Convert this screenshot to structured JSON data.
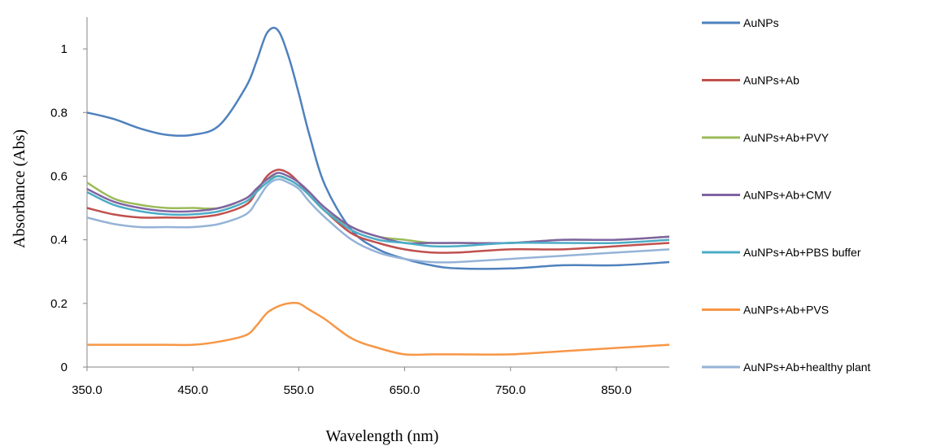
{
  "chart_data": {
    "type": "line",
    "title": "",
    "xlabel": "Wavelength (nm)",
    "ylabel": "Absorbance (Abs)",
    "xlim": [
      350,
      900
    ],
    "ylim": [
      0,
      1.1
    ],
    "x_ticks": [
      "350.0",
      "450.0",
      "550.0",
      "650.0",
      "750.0",
      "850.0"
    ],
    "x_tick_values": [
      350,
      450,
      550,
      650,
      750,
      850
    ],
    "y_ticks": [
      "0",
      "0.2",
      "0.4",
      "0.6",
      "0.8",
      "1"
    ],
    "y_tick_values": [
      0,
      0.2,
      0.4,
      0.6,
      0.8,
      1.0
    ],
    "grid": false,
    "legend_position": "right",
    "x": [
      350,
      375,
      400,
      425,
      450,
      475,
      500,
      510,
      520,
      530,
      540,
      550,
      560,
      575,
      600,
      625,
      650,
      675,
      700,
      750,
      800,
      850,
      900
    ],
    "series": [
      {
        "name": "AuNPs",
        "color": "#4F81BD",
        "values": [
          0.8,
          0.78,
          0.75,
          0.73,
          0.73,
          0.76,
          0.88,
          0.96,
          1.05,
          1.06,
          0.98,
          0.86,
          0.73,
          0.57,
          0.43,
          0.37,
          0.34,
          0.32,
          0.31,
          0.31,
          0.32,
          0.32,
          0.33
        ]
      },
      {
        "name": "AuNPs+Ab",
        "color": "#C0504D",
        "values": [
          0.5,
          0.48,
          0.47,
          0.47,
          0.47,
          0.48,
          0.51,
          0.55,
          0.6,
          0.62,
          0.61,
          0.58,
          0.54,
          0.49,
          0.42,
          0.39,
          0.37,
          0.36,
          0.36,
          0.37,
          0.37,
          0.38,
          0.39
        ]
      },
      {
        "name": "AuNPs+Ab+PVY",
        "color": "#9BBB59",
        "values": [
          0.58,
          0.53,
          0.51,
          0.5,
          0.5,
          0.5,
          0.53,
          0.56,
          0.59,
          0.6,
          0.59,
          0.57,
          0.54,
          0.49,
          0.44,
          0.41,
          0.4,
          0.39,
          0.39,
          0.39,
          0.4,
          0.4,
          0.41
        ]
      },
      {
        "name": "AuNPs+Ab+CMV",
        "color": "#8064A2",
        "values": [
          0.56,
          0.52,
          0.5,
          0.49,
          0.49,
          0.5,
          0.53,
          0.56,
          0.59,
          0.61,
          0.6,
          0.58,
          0.55,
          0.5,
          0.44,
          0.41,
          0.39,
          0.39,
          0.39,
          0.39,
          0.4,
          0.4,
          0.41
        ]
      },
      {
        "name": "AuNPs+Ab+PBS buffer",
        "color": "#4BACC6",
        "values": [
          0.55,
          0.51,
          0.49,
          0.48,
          0.48,
          0.49,
          0.52,
          0.55,
          0.58,
          0.6,
          0.59,
          0.57,
          0.54,
          0.49,
          0.43,
          0.4,
          0.39,
          0.38,
          0.38,
          0.39,
          0.39,
          0.39,
          0.4
        ]
      },
      {
        "name": "AuNPs+Ab+PVS",
        "color": "#F79646",
        "values": [
          0.07,
          0.07,
          0.07,
          0.07,
          0.07,
          0.08,
          0.1,
          0.13,
          0.17,
          0.19,
          0.2,
          0.2,
          0.18,
          0.15,
          0.09,
          0.06,
          0.04,
          0.04,
          0.04,
          0.04,
          0.05,
          0.06,
          0.07
        ]
      },
      {
        "name": "AuNPs+Ab+healthy plant",
        "color": "#95B3D7",
        "values": [
          0.47,
          0.45,
          0.44,
          0.44,
          0.44,
          0.45,
          0.48,
          0.52,
          0.57,
          0.59,
          0.58,
          0.56,
          0.52,
          0.47,
          0.4,
          0.36,
          0.34,
          0.33,
          0.33,
          0.34,
          0.35,
          0.36,
          0.37
        ]
      }
    ]
  }
}
